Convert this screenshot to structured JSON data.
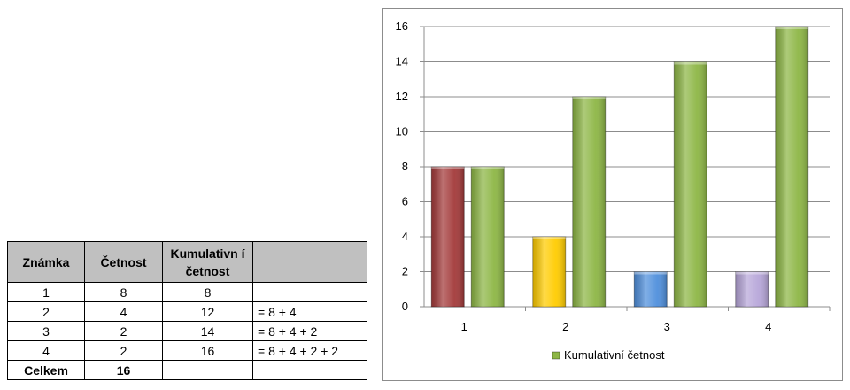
{
  "table": {
    "headers": [
      "Známka",
      "Četnost",
      "Kumulativn í četnost",
      ""
    ],
    "rows": [
      {
        "grade": "1",
        "freq": "8",
        "cum": "8",
        "formula": ""
      },
      {
        "grade": "2",
        "freq": "4",
        "cum": "12",
        "formula": "= 8 + 4"
      },
      {
        "grade": "3",
        "freq": "2",
        "cum": "14",
        "formula": "= 8 + 4 + 2"
      },
      {
        "grade": "4",
        "freq": "2",
        "cum": "16",
        "formula": "= 8 + 4 + 2 + 2"
      }
    ],
    "total": {
      "label": "Celkem",
      "value": "16"
    }
  },
  "chart_data": {
    "type": "bar",
    "categories": [
      "1",
      "2",
      "3",
      "4"
    ],
    "series": [
      {
        "values": [
          8,
          4,
          2,
          2
        ],
        "colors": [
          "#a33a3a",
          "#ffcc00",
          "#4f8fdc",
          "#b7a6d9"
        ]
      },
      {
        "name": "Kumulativní četnost",
        "values": [
          8,
          12,
          14,
          16
        ],
        "color": "#8db645"
      }
    ],
    "ylim": [
      0,
      16
    ],
    "yticks": [
      0,
      2,
      4,
      6,
      8,
      10,
      12,
      14,
      16
    ],
    "grid": true,
    "legend": "bottom"
  }
}
